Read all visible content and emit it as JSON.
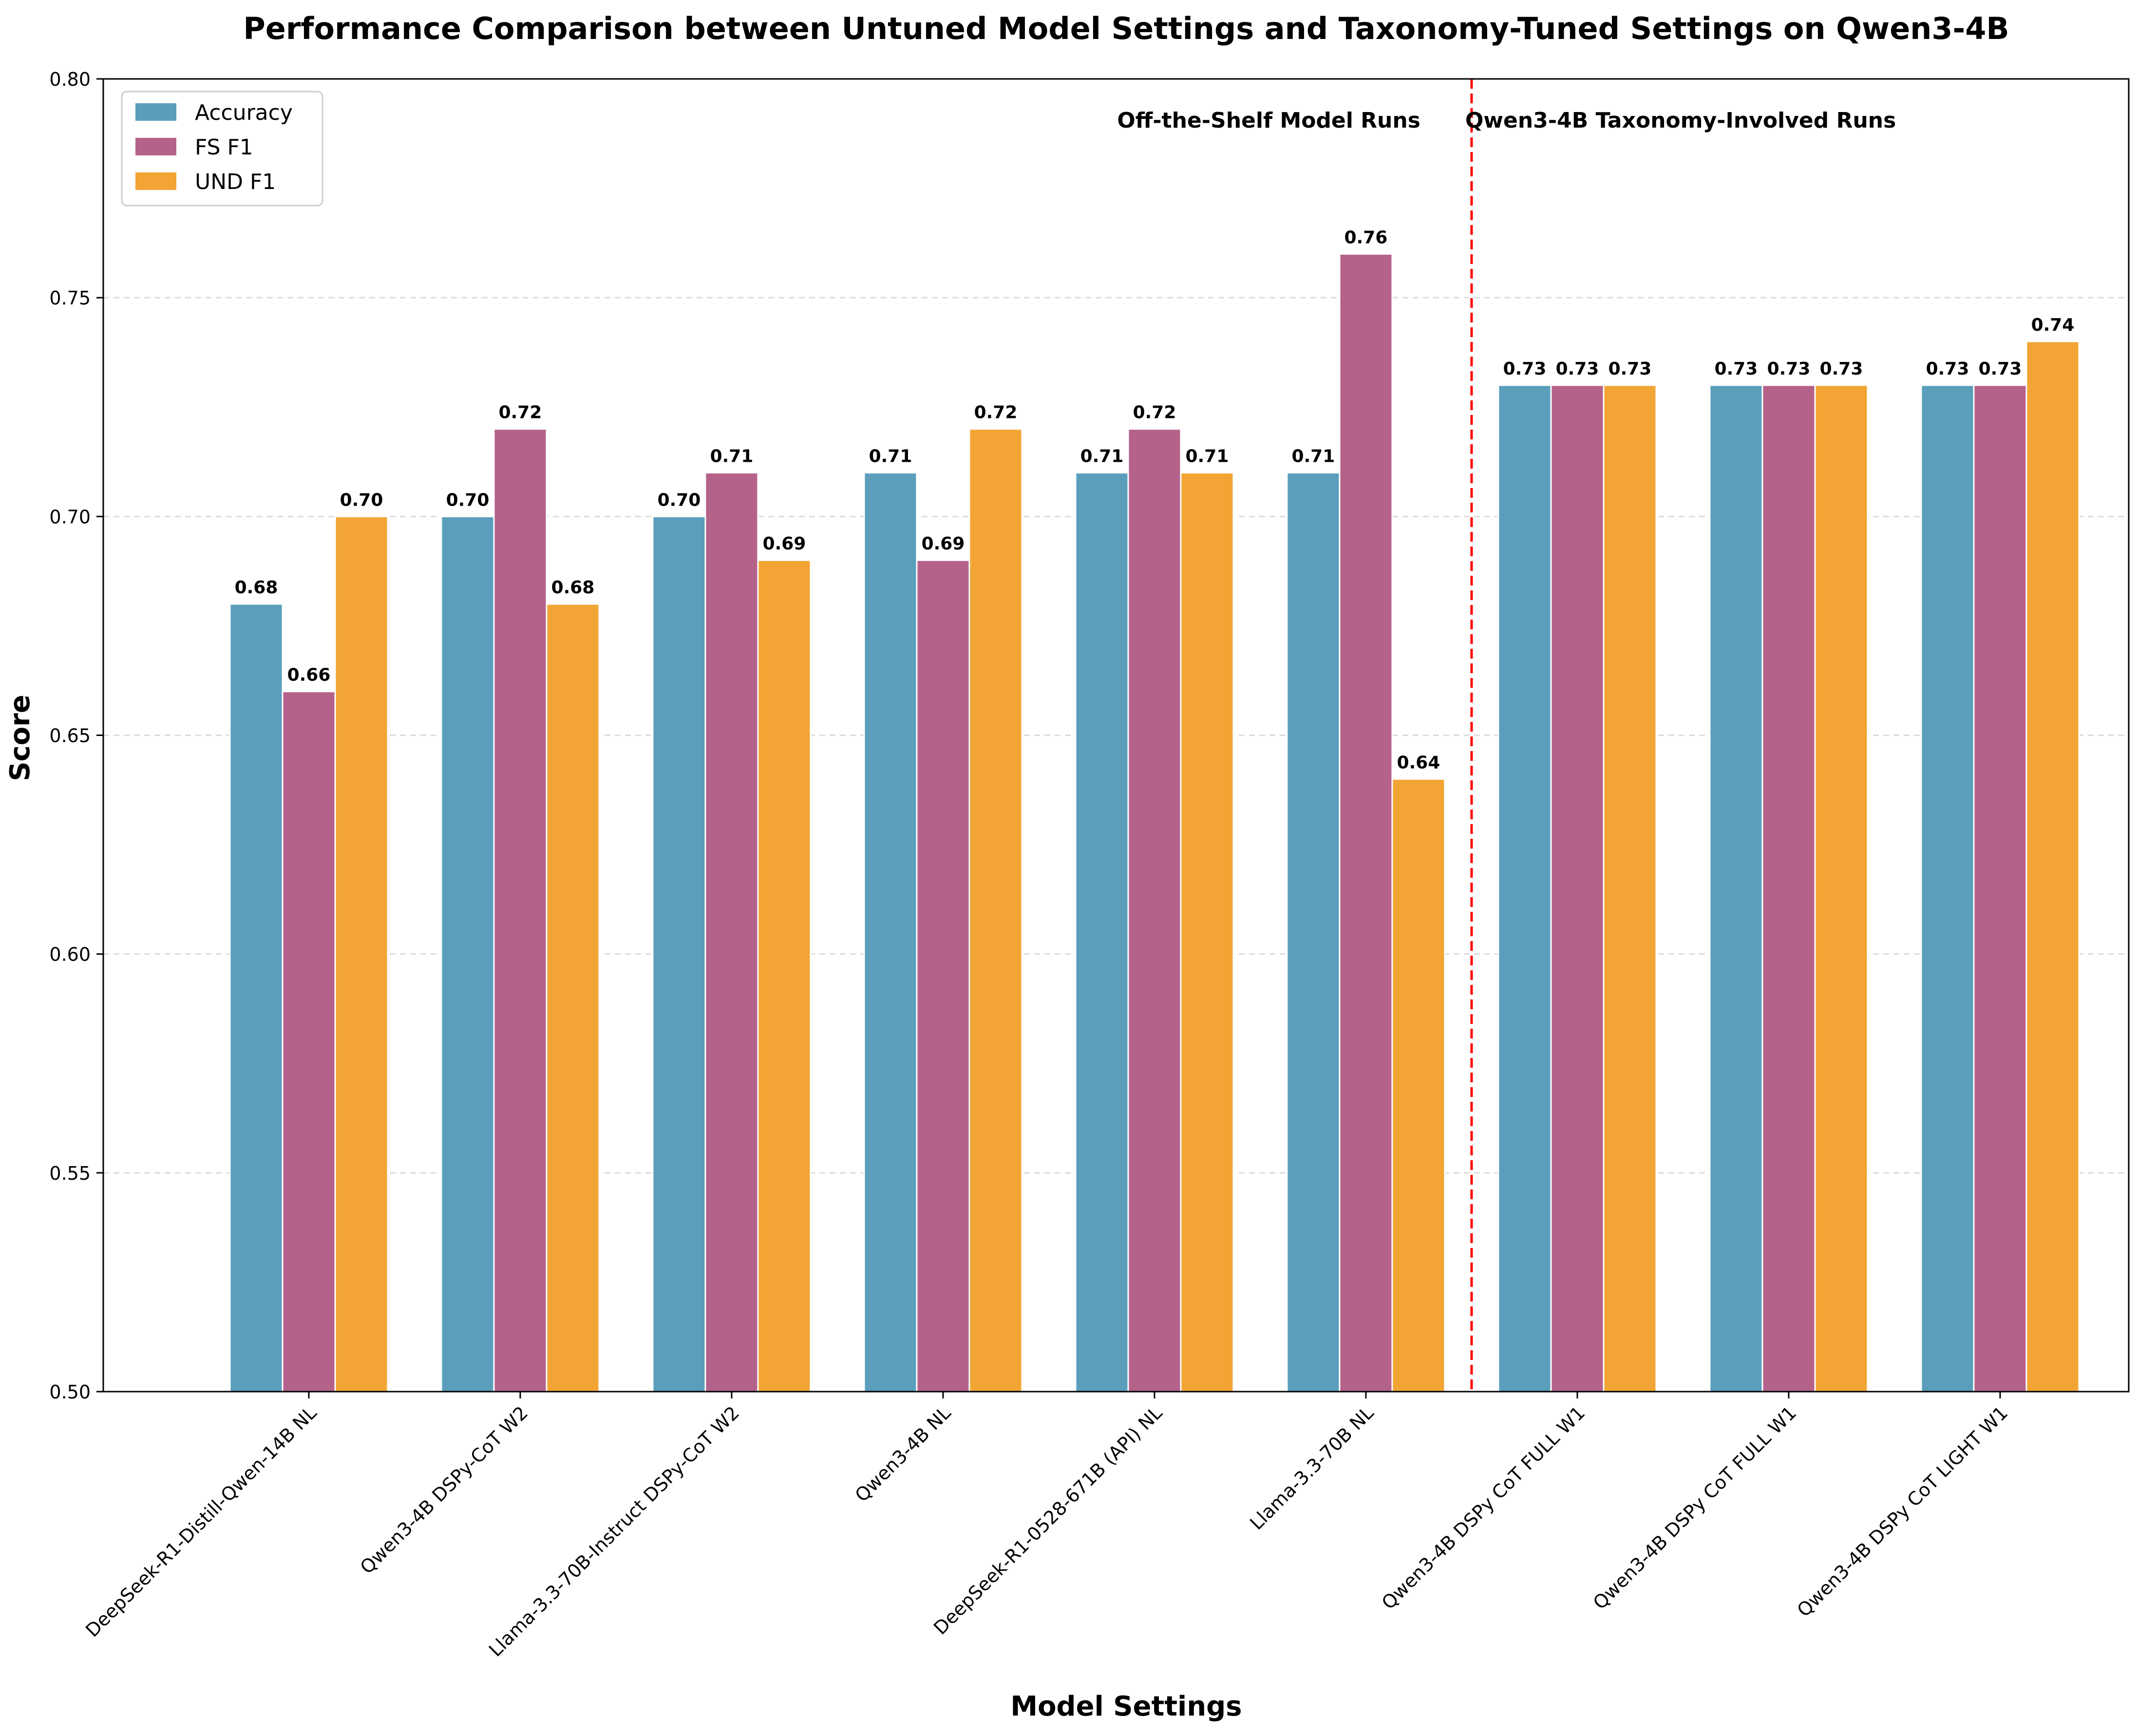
{
  "chart_data": {
    "type": "bar",
    "title": "Performance Comparison between Untuned Model Settings and Taxonomy-Tuned Settings on Qwen3-4B",
    "xlabel": "Model Settings",
    "ylabel": "Score",
    "ylim": [
      0.5,
      0.8
    ],
    "yticks": [
      "0.50",
      "0.55",
      "0.60",
      "0.65",
      "0.70",
      "0.75",
      "0.80"
    ],
    "grid": "y-dashed",
    "legend_position": "top-left",
    "categories": [
      "DeepSeek-R1-Distill-Qwen-14B NL",
      "Qwen3-4B DSPy-CoT W2",
      "Llama-3.3-70B-Instruct DSPy-CoT W2",
      "Qwen3-4B NL",
      "DeepSeek-R1-0528-671B (API) NL",
      "Llama-3.3-70B NL",
      "Qwen3-4B DSPy CoT FULL W1",
      "Qwen3-4B DSPy CoT FULL W1",
      "Qwen3-4B DSPy CoT LIGHT W1"
    ],
    "series": [
      {
        "name": "Accuracy",
        "color": "#5a9ebc",
        "values": [
          0.68,
          0.7,
          0.7,
          0.71,
          0.71,
          0.71,
          0.73,
          0.73,
          0.73
        ]
      },
      {
        "name": "FS F1",
        "color": "#b5628b",
        "values": [
          0.66,
          0.72,
          0.71,
          0.69,
          0.72,
          0.76,
          0.73,
          0.73,
          0.73
        ]
      },
      {
        "name": "UND F1",
        "color": "#f2a534",
        "values": [
          0.7,
          0.68,
          0.69,
          0.72,
          0.71,
          0.64,
          0.73,
          0.73,
          0.74
        ]
      }
    ],
    "divider_after_category_index": 5,
    "divider_color": "#ff0000",
    "annotations": {
      "left_region": "Off-the-Shelf Model Runs",
      "right_region": "Qwen3-4B Taxonomy-Involved Runs",
      "color": "#ff0000"
    }
  }
}
